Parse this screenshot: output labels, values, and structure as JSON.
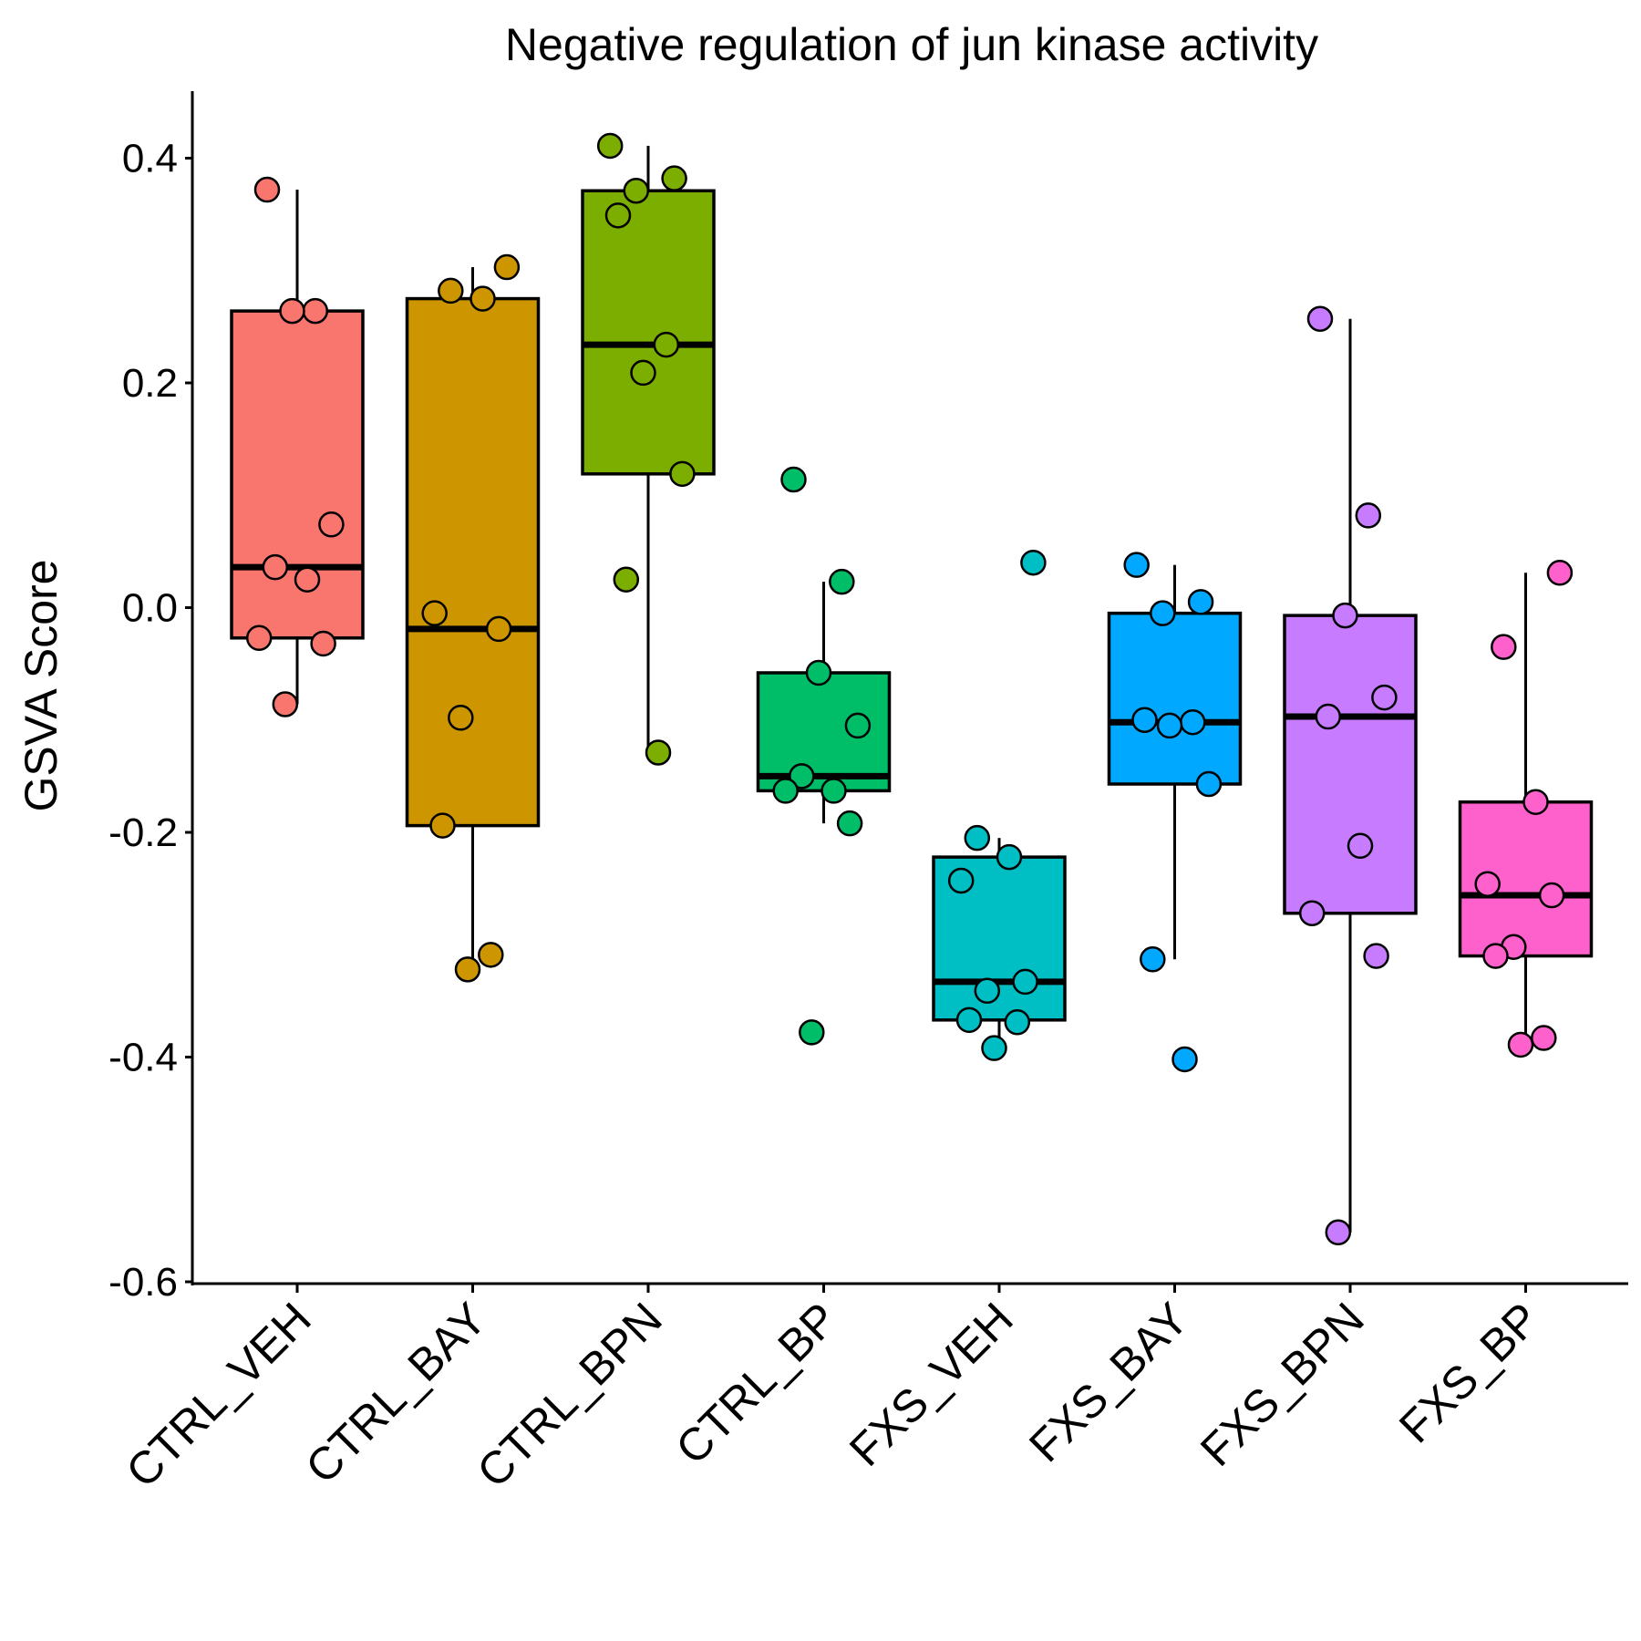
{
  "chart_data": {
    "type": "boxplot",
    "title": "Negative regulation of jun kinase activity",
    "xlabel": "",
    "ylabel": "GSVA Score",
    "ylim": [
      -0.6,
      0.45
    ],
    "yticks": [
      0.4,
      0.2,
      0.0,
      -0.2,
      -0.4,
      -0.6
    ],
    "ytick_labels": [
      "0.4",
      "0.2",
      "0.0",
      "-0.2",
      "-0.4",
      "-0.6"
    ],
    "legend": "none",
    "grid": false,
    "categories": [
      "CTRL_VEH",
      "CTRL_BAY",
      "CTRL_BPN",
      "CTRL_BP",
      "FXS_VEH",
      "FXS_BAY",
      "FXS_BPN",
      "FXS_BP"
    ],
    "colors": [
      "#F8766D",
      "#CD9600",
      "#7CAE00",
      "#00BE67",
      "#00BFC4",
      "#00A9FF",
      "#C77CFF",
      "#FF61CC"
    ],
    "boxes": [
      {
        "category": "CTRL_VEH",
        "whisker_low": -0.086,
        "q1": -0.027,
        "median": 0.036,
        "q3": 0.264,
        "whisker_high": 0.372
      },
      {
        "category": "CTRL_BAY",
        "whisker_low": -0.322,
        "q1": -0.194,
        "median": -0.019,
        "q3": 0.275,
        "whisker_high": 0.303
      },
      {
        "category": "CTRL_BPN",
        "whisker_low": -0.129,
        "q1": 0.119,
        "median": 0.234,
        "q3": 0.371,
        "whisker_high": 0.411
      },
      {
        "category": "CTRL_BP",
        "whisker_low": -0.192,
        "q1": -0.163,
        "median": -0.15,
        "q3": -0.058,
        "whisker_high": 0.023
      },
      {
        "category": "FXS_VEH",
        "whisker_low": -0.392,
        "q1": -0.367,
        "median": -0.333,
        "q3": -0.222,
        "whisker_high": -0.205
      },
      {
        "category": "FXS_BAY",
        "whisker_low": -0.313,
        "q1": -0.157,
        "median": -0.102,
        "q3": -0.005,
        "whisker_high": 0.038
      },
      {
        "category": "FXS_BPN",
        "whisker_low": -0.556,
        "q1": -0.272,
        "median": -0.097,
        "q3": -0.007,
        "whisker_high": 0.257
      },
      {
        "category": "FXS_BP",
        "whisker_low": -0.389,
        "q1": -0.31,
        "median": -0.256,
        "q3": -0.173,
        "whisker_high": 0.031
      }
    ],
    "points": [
      {
        "category": "CTRL_VEH",
        "values": [
          0.372,
          0.264,
          0.264,
          0.074,
          0.036,
          0.025,
          -0.027,
          -0.032,
          -0.086
        ]
      },
      {
        "category": "CTRL_BAY",
        "values": [
          0.303,
          0.282,
          0.275,
          -0.005,
          -0.019,
          -0.098,
          -0.194,
          -0.309,
          -0.322
        ]
      },
      {
        "category": "CTRL_BPN",
        "values": [
          0.411,
          0.382,
          0.371,
          0.349,
          0.234,
          0.209,
          0.119,
          0.025,
          -0.129
        ]
      },
      {
        "category": "CTRL_BP",
        "values": [
          0.114,
          0.023,
          -0.058,
          -0.105,
          -0.15,
          -0.163,
          -0.163,
          -0.192,
          -0.378
        ]
      },
      {
        "category": "FXS_VEH",
        "values": [
          0.04,
          -0.205,
          -0.222,
          -0.243,
          -0.333,
          -0.341,
          -0.367,
          -0.369,
          -0.392
        ]
      },
      {
        "category": "FXS_BAY",
        "values": [
          0.038,
          0.005,
          -0.005,
          -0.1,
          -0.102,
          -0.105,
          -0.157,
          -0.313,
          -0.402
        ]
      },
      {
        "category": "FXS_BPN",
        "values": [
          0.257,
          0.082,
          -0.007,
          -0.08,
          -0.097,
          -0.212,
          -0.272,
          -0.31,
          -0.556
        ]
      },
      {
        "category": "FXS_BP",
        "values": [
          0.031,
          -0.035,
          -0.173,
          -0.246,
          -0.256,
          -0.302,
          -0.31,
          -0.383,
          -0.389
        ]
      }
    ]
  }
}
